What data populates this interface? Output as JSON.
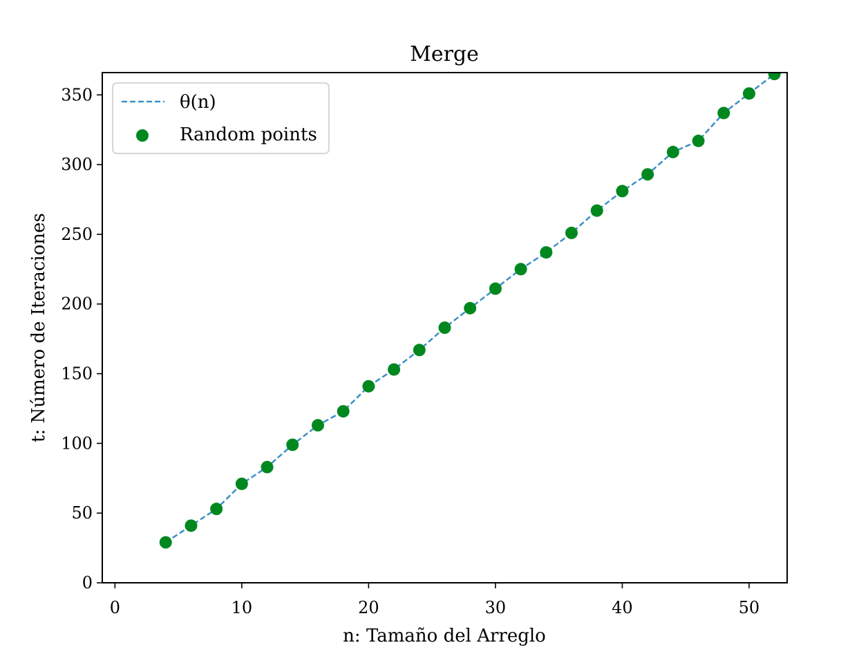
{
  "chart_data": {
    "type": "scatter",
    "title": "Merge",
    "xlabel": "n: Tamaño del Arreglo",
    "ylabel": "t: Número de Iteraciones",
    "xlim": [
      -1,
      53
    ],
    "ylim": [
      0,
      366
    ],
    "xticks": [
      0,
      10,
      20,
      30,
      40,
      50
    ],
    "yticks": [
      0,
      50,
      100,
      150,
      200,
      250,
      300,
      350
    ],
    "grid": false,
    "legend_position": "top-left",
    "series": [
      {
        "name": "θ(n)",
        "kind": "line",
        "style": "dashed",
        "color": "#3a8fc7",
        "x": [
          4,
          6,
          8,
          10,
          12,
          14,
          16,
          18,
          20,
          22,
          24,
          26,
          28,
          30,
          32,
          34,
          36,
          38,
          40,
          42,
          44,
          46,
          48,
          50,
          52
        ],
        "y": [
          29,
          41,
          53,
          71,
          83,
          99,
          113,
          123,
          141,
          153,
          167,
          183,
          197,
          211,
          225,
          237,
          251,
          267,
          281,
          293,
          309,
          317,
          337,
          351,
          365
        ]
      },
      {
        "name": "Random points",
        "kind": "scatter",
        "color": "#00881f",
        "x": [
          4,
          6,
          8,
          10,
          12,
          14,
          16,
          18,
          20,
          22,
          24,
          26,
          28,
          30,
          32,
          34,
          36,
          38,
          40,
          42,
          44,
          46,
          48,
          50,
          52
        ],
        "y": [
          29,
          41,
          53,
          71,
          83,
          99,
          113,
          123,
          141,
          153,
          167,
          183,
          197,
          211,
          225,
          237,
          251,
          267,
          281,
          293,
          309,
          317,
          337,
          351,
          365
        ]
      }
    ]
  }
}
